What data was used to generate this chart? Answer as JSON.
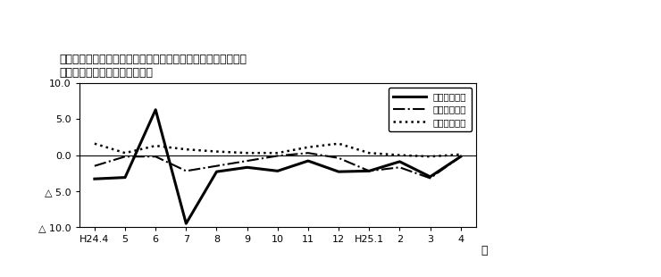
{
  "title_line1": "第４図　賃金、労働時間、常用雇用指数　対前年同月比の推移",
  "title_line2": "（規樯５人以上　調査産業計）",
  "ylabel": "%",
  "xlabel": "月",
  "ylim": [
    -10.0,
    10.0
  ],
  "yticks": [
    10.0,
    5.0,
    0.0,
    -5.0,
    -10.0
  ],
  "ytick_labels": [
    "10.0",
    "5.0",
    "0.0",
    "△ 5.0",
    "△ 10.0"
  ],
  "x_labels": [
    "H24.4",
    "5",
    "6",
    "7",
    "8",
    "9",
    "10",
    "11",
    "12",
    "H25.1",
    "2",
    "3",
    "4"
  ],
  "series": {
    "現金給与総額": {
      "values": [
        -3.3,
        -3.1,
        6.3,
        -9.5,
        -2.3,
        -1.7,
        -2.2,
        -0.8,
        -2.3,
        -2.2,
        -0.9,
        -3.0,
        -0.2
      ],
      "linestyle": "solid",
      "linewidth": 2.2,
      "color": "#000000"
    },
    "総実労働時間": {
      "values": [
        -1.5,
        -0.2,
        -0.2,
        -2.2,
        -1.5,
        -0.8,
        -0.1,
        0.3,
        -0.4,
        -2.2,
        -1.7,
        -3.2,
        -0.2
      ],
      "linestyle": "dashdot",
      "linewidth": 1.5,
      "color": "#000000"
    },
    "常用雇用指数": {
      "values": [
        1.6,
        0.3,
        1.3,
        0.8,
        0.5,
        0.3,
        0.3,
        1.1,
        1.6,
        0.3,
        0.0,
        -0.2,
        0.1
      ],
      "linestyle": "dotted",
      "linewidth": 1.8,
      "color": "#000000"
    }
  },
  "legend_labels": [
    "現金給与総額",
    "総実労働時間",
    "常用雇用指数"
  ],
  "background_color": "#ffffff"
}
